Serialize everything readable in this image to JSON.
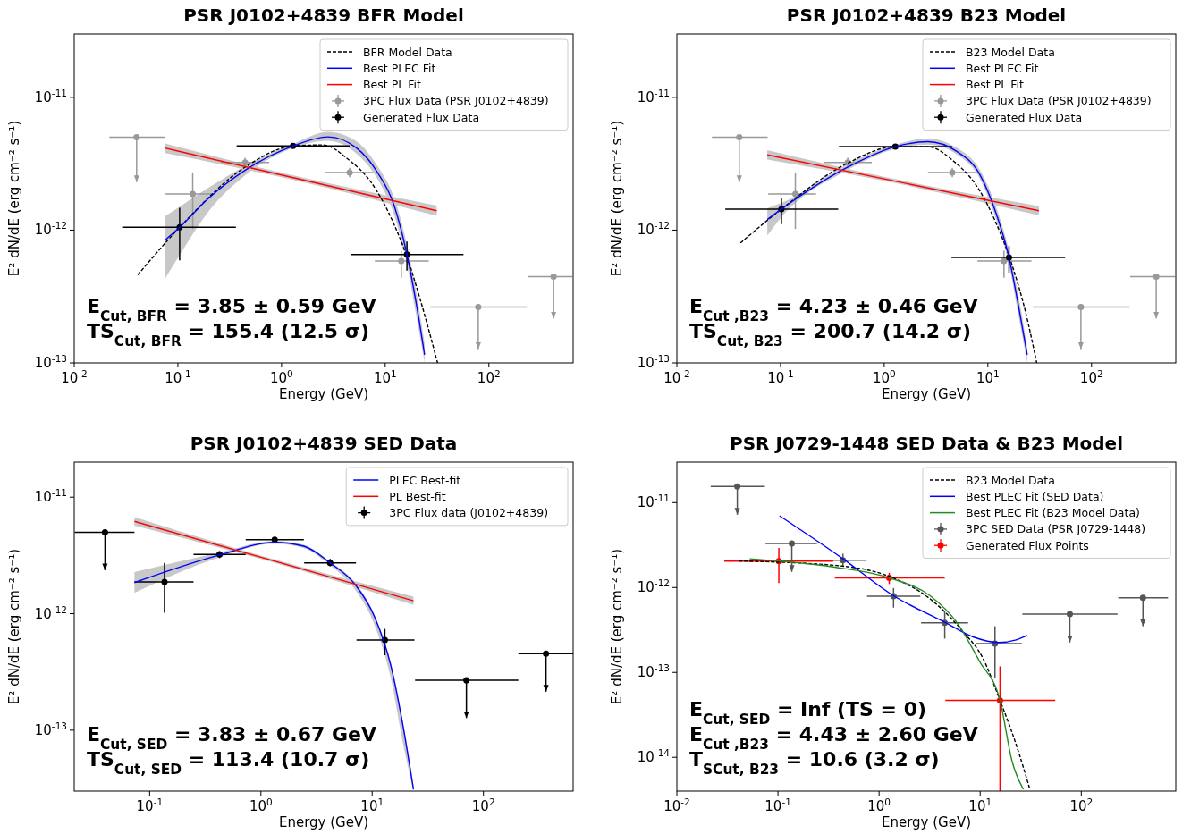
{
  "chart_data": [
    {
      "type": "line",
      "title": "PSR J0102+4839 BFR Model",
      "xlabel": "Energy (GeV)",
      "ylabel": "E² dN/dE (erg cm⁻² s⁻¹)",
      "log": "xy",
      "legend": "top right",
      "xlim": [
        0.01,
        650
      ],
      "ylim": [
        1e-13,
        3e-11
      ],
      "xticks": [
        {
          "value": 0.01,
          "label": "10$^{-2}$"
        },
        {
          "value": 0.1,
          "label": "10$^{-1}$"
        },
        {
          "value": 1,
          "label": "10$^{0}$"
        },
        {
          "value": 10,
          "label": "10$^{1}$"
        },
        {
          "value": 100,
          "label": "10$^{2}$"
        }
      ],
      "yticks": [
        {
          "value": 1e-13,
          "label": "10$^{-13}$"
        },
        {
          "value": 1e-12,
          "label": "10$^{-12}$"
        },
        {
          "value": 1e-11,
          "label": "10$^{-11}$"
        }
      ],
      "series": [
        {
          "name": "BFR Model Data",
          "line_style": "dashed",
          "color": "#000000",
          "x": [
            0.041,
            0.104,
            0.45,
            1.29,
            2.5,
            4.48,
            7.38,
            12.2,
            16.2,
            21.7,
            32
          ],
          "values": [
            4.6e-13,
            1.05e-12,
            3e-12,
            4.3e-12,
            4.38e-12,
            3.37e-12,
            2.27e-12,
            1.1e-12,
            6.3e-13,
            3.03e-13,
            1e-13
          ]
        },
        {
          "name": "Best PLEC Fit",
          "color": "#0000ff",
          "x": [
            0.075,
            0.104,
            0.2,
            0.45,
            1.29,
            2.8,
            5.2,
            8.5,
            12.2,
            16.2,
            20.1,
            24
          ],
          "values": [
            8.4e-13,
            1.05e-12,
            1.75e-12,
            2.84e-12,
            4.3e-12,
            5.04e-12,
            4.2e-12,
            2.69e-12,
            1.53e-12,
            6.55e-13,
            2.7e-13,
            1.15e-13
          ],
          "lower": [
            4.3e-13,
            6.5e-13,
            1.4e-12,
            2.6e-12,
            4.15e-12,
            4.7e-12,
            3.8e-12,
            2.4e-12,
            1.3e-12,
            5.5e-13,
            2.2e-13,
            1e-13
          ],
          "upper": [
            1.27e-12,
            1.5e-12,
            2.1e-12,
            3.05e-12,
            4.45e-12,
            5.5e-12,
            4.7e-12,
            3e-12,
            1.75e-12,
            7.8e-13,
            3.3e-13,
            1.4e-13
          ]
        },
        {
          "name": "Best PL Fit",
          "color": "#ff0000",
          "x": [
            0.075,
            1,
            31.4
          ],
          "values": [
            4.15e-12,
            2.6e-12,
            1.4e-12
          ],
          "lower": [
            3.8e-12,
            2.5e-12,
            1.28e-12
          ],
          "upper": [
            4.5e-12,
            2.7e-12,
            1.53e-12
          ]
        },
        {
          "name": "3PC Flux Data (PSR J0102+4839)",
          "type": "scatter",
          "color": "#999999",
          "x": [
            0.04,
            0.139,
            0.445,
            4.54,
            14.3,
            79,
            421
          ],
          "values": [
            5e-12,
            1.87e-12,
            3.23e-12,
            2.72e-12,
            5.86e-13,
            2.63e-13,
            4.47e-13
          ],
          "xerrors": [
            [
              0.0218,
              0.075
            ],
            [
              0.076,
              0.22
            ],
            [
              0.26,
              0.76
            ],
            [
              2.64,
              7.65
            ],
            [
              7.94,
              26.3
            ],
            [
              27.2,
              233
            ],
            [
              236,
              640
            ]
          ],
          "errors": [
            [
              2.3e-12,
              5e-12
            ],
            [
              1.02e-12,
              2.72e-12
            ],
            [
              3e-12,
              3.5e-12
            ],
            [
              2.5e-12,
              2.95e-12
            ],
            [
              4.37e-13,
              7e-13
            ],
            [
              1.27e-13,
              2.63e-13
            ],
            [
              2.16e-13,
              4.47e-13
            ]
          ]
        },
        {
          "name": "Generated Flux Data",
          "type": "scatter",
          "color": "#000000",
          "x": [
            0.104,
            1.29,
            16.2
          ],
          "values": [
            1.05e-12,
            4.3e-12,
            6.55e-13
          ],
          "xerrors": [
            [
              0.0296,
              0.363
            ],
            [
              0.369,
              4.54
            ],
            [
              4.64,
              56.9
            ]
          ],
          "errors": [
            [
              5.93e-13,
              1.47e-12
            ],
            null,
            [
              4.95e-13,
              8.2e-13
            ]
          ]
        }
      ],
      "annotations": [
        "E$_{Cut, BFR}$ = 3.85 ± 0.59 GeV",
        "TS$_{Cut, BFR}$ = 155.4 (12.5 σ)"
      ]
    },
    {
      "type": "line",
      "title": "PSR J0102+4839 B23 Model",
      "xlabel": "Energy (GeV)",
      "ylabel": "E² dN/dE (erg cm⁻² s⁻¹)",
      "log": "xy",
      "legend": "top right",
      "xlim": [
        0.01,
        650
      ],
      "ylim": [
        1e-13,
        3e-11
      ],
      "xticks": [
        {
          "value": 0.01,
          "label": "10$^{-2}$"
        },
        {
          "value": 0.1,
          "label": "10$^{-1}$"
        },
        {
          "value": 1,
          "label": "10$^{0}$"
        },
        {
          "value": 10,
          "label": "10$^{1}$"
        },
        {
          "value": 100,
          "label": "10$^{2}$"
        }
      ],
      "yticks": [
        {
          "value": 1e-13,
          "label": "10$^{-13}$"
        },
        {
          "value": 1e-12,
          "label": "10$^{-12}$"
        },
        {
          "value": 1e-11,
          "label": "10$^{-11}$"
        }
      ],
      "series": [
        {
          "name": "B23 Model Data",
          "line_style": "dashed",
          "color": "#000000",
          "x": [
            0.041,
            0.102,
            0.43,
            1.28,
            2.63,
            4.69,
            8.35,
            12.0,
            17.2,
            23.0,
            29.6
          ],
          "values": [
            8e-13,
            1.44e-12,
            3.15e-12,
            4.25e-12,
            4.25e-12,
            3.3e-12,
            1.98e-12,
            1.13e-12,
            5.4e-13,
            2.45e-13,
            1e-13
          ]
        },
        {
          "name": "Best PLEC Fit",
          "color": "#0000ff",
          "x": [
            0.0745,
            0.102,
            0.43,
            1.28,
            2.63,
            5.05,
            8.35,
            12.0,
            16.0,
            19.9,
            24
          ],
          "values": [
            1.2e-12,
            1.44e-12,
            2.94e-12,
            4.25e-12,
            4.63e-12,
            3.9e-12,
            2.63e-12,
            1.34e-12,
            6.22e-13,
            2.6e-13,
            1.15e-13
          ],
          "lower": [
            9.1e-13,
            1.25e-12,
            2.8e-12,
            4.1e-12,
            4.4e-12,
            3.7e-12,
            2.45e-12,
            1.2e-12,
            5.5e-13,
            2.2e-13,
            1e-13
          ],
          "upper": [
            1.46e-12,
            1.6e-12,
            3.1e-12,
            4.4e-12,
            4.9e-12,
            4.15e-12,
            2.85e-12,
            1.5e-12,
            7e-13,
            3.1e-13,
            1.3e-13
          ]
        },
        {
          "name": "Best PL Fit",
          "color": "#ff0000",
          "x": [
            0.0745,
            1,
            31.1
          ],
          "values": [
            3.69e-12,
            2.43e-12,
            1.4e-12
          ],
          "lower": [
            3.4e-12,
            2.35e-12,
            1.29e-12
          ],
          "upper": [
            4e-12,
            2.52e-12,
            1.52e-12
          ]
        },
        {
          "name": "3PC Flux Data (PSR J0102+4839)",
          "type": "scatter",
          "color": "#999999",
          "x": [
            0.04,
            0.139,
            0.445,
            4.54,
            14.3,
            79,
            421
          ],
          "values": [
            5e-12,
            1.87e-12,
            3.23e-12,
            2.72e-12,
            5.86e-13,
            2.63e-13,
            4.47e-13
          ],
          "xerrors": [
            [
              0.0218,
              0.075
            ],
            [
              0.076,
              0.22
            ],
            [
              0.26,
              0.76
            ],
            [
              2.64,
              7.65
            ],
            [
              7.94,
              26.3
            ],
            [
              27.2,
              233
            ],
            [
              236,
              640
            ]
          ],
          "errors": [
            [
              2.3e-12,
              5e-12
            ],
            [
              1.02e-12,
              2.72e-12
            ],
            [
              3e-12,
              3.5e-12
            ],
            [
              2.5e-12,
              2.95e-12
            ],
            [
              4.37e-13,
              7e-13
            ],
            [
              1.27e-13,
              2.63e-13
            ],
            [
              2.16e-13,
              4.47e-13
            ]
          ]
        },
        {
          "name": "Generated Flux Data",
          "type": "scatter",
          "color": "#000000",
          "x": [
            0.102,
            1.28,
            16.0
          ],
          "values": [
            1.44e-12,
            4.25e-12,
            6.22e-13
          ],
          "xerrors": [
            [
              0.0293,
              0.36
            ],
            [
              0.366,
              4.52
            ],
            [
              4.46,
              55.6
            ]
          ],
          "errors": [
            [
              1.11e-12,
              1.74e-12
            ],
            null,
            [
              4.78e-13,
              7.6e-13
            ]
          ]
        }
      ],
      "annotations": [
        "E$_{Cut ,B23}$ = 4.23 ± 0.46 GeV",
        "TS$_{Cut, B23}$ = 200.7 (14.2 σ)"
      ]
    },
    {
      "type": "line",
      "title": "PSR J0102+4839 SED Data",
      "xlabel": "Energy (GeV)",
      "ylabel": "E² dN/dE (erg cm⁻² s⁻¹)",
      "log": "xy",
      "legend": "top right",
      "xlim": [
        0.021,
        640
      ],
      "ylim": [
        3e-14,
        2e-11
      ],
      "xticks": [
        {
          "value": 0.1,
          "label": "10$^{-1}$"
        },
        {
          "value": 1,
          "label": "10$^{0}$"
        },
        {
          "value": 10,
          "label": "10$^{1}$"
        },
        {
          "value": 100,
          "label": "10$^{2}$"
        }
      ],
      "yticks": [
        {
          "value": 1e-13,
          "label": "10$^{-13}$"
        },
        {
          "value": 1e-12,
          "label": "10$^{-12}$"
        },
        {
          "value": 1e-11,
          "label": "10$^{-11}$"
        }
      ],
      "series": [
        {
          "name": "PLEC Best-fit",
          "color": "#0000ff",
          "x": [
            0.073,
            0.425,
            1.33,
            2.43,
            4.19,
            7.06,
            10.5,
            14.7,
            19.2,
            23.5
          ],
          "values": [
            1.85e-12,
            3.19e-12,
            4.1e-12,
            3.8e-12,
            2.73e-12,
            1.77e-12,
            9.4e-13,
            3.6e-13,
            1.01e-13,
            3.1e-14
          ],
          "lower": [
            1.51e-12,
            3.05e-12,
            3.98e-12,
            3.65e-12,
            2.6e-12,
            1.6e-12,
            8e-13,
            2.8e-13,
            7.2e-14,
            3e-14
          ],
          "upper": [
            2.28e-12,
            3.35e-12,
            4.2e-12,
            3.9e-12,
            2.8e-12,
            1.83e-12,
            9.8e-13,
            3.8e-13,
            1.08e-13,
            3.4e-14
          ]
        },
        {
          "name": "PL Best-fit",
          "color": "#ff0000",
          "x": [
            0.073,
            1,
            23.5
          ],
          "values": [
            6.2e-12,
            3.05e-12,
            1.29e-12
          ],
          "lower": [
            5.7e-12,
            2.95e-12,
            1.19e-12
          ],
          "upper": [
            6.75e-12,
            3.15e-12,
            1.4e-12
          ]
        },
        {
          "name": "3PC Flux data (J0102+4839)",
          "type": "scatter",
          "color": "#000000",
          "x": [
            0.0397,
            0.136,
            0.425,
            1.33,
            4.19,
            13.0,
            70.3,
            365
          ],
          "values": [
            5e-12,
            1.87e-12,
            3.22e-12,
            4.31e-12,
            2.73e-12,
            5.94e-13,
            2.68e-13,
            4.54e-13
          ],
          "xerrors": [
            [
              0.0212,
              0.073
            ],
            [
              0.073,
              0.248
            ],
            [
              0.248,
              0.73
            ],
            [
              0.73,
              2.43
            ],
            [
              2.45,
              7.16
            ],
            [
              7.23,
              24
            ],
            [
              24.3,
              206
            ],
            [
              206,
              640
            ]
          ],
          "errors": [
            [
              2.36e-12,
              5e-12
            ],
            [
              1.02e-12,
              2.73e-12
            ],
            [
              3e-12,
              3.45e-12
            ],
            null,
            [
              2.55e-12,
              2.95e-12
            ],
            [
              4.4e-13,
              7.4e-13
            ],
            [
              1.27e-13,
              2.68e-13
            ],
            [
              2.14e-13,
              4.54e-13
            ]
          ]
        }
      ],
      "annotations": [
        "E$_{Cut, SED}$ = 3.83 ± 0.67 GeV",
        "TS$_{Cut, SED}$ = 113.4 (10.7 σ)"
      ]
    },
    {
      "type": "line",
      "title": "PSR J0729-1448 SED Data & B23 Model",
      "xlabel": "Energy (GeV)",
      "ylabel": "E² dN/dE (erg cm⁻² s⁻¹)",
      "log": "xy",
      "legend": "top right",
      "xlim": [
        0.01,
        860
      ],
      "ylim": [
        4e-15,
        3e-11
      ],
      "xticks": [
        {
          "value": 0.01,
          "label": "10$^{-2}$"
        },
        {
          "value": 0.1,
          "label": "10$^{-1}$"
        },
        {
          "value": 1,
          "label": "10$^{0}$"
        },
        {
          "value": 10,
          "label": "10$^{1}$"
        },
        {
          "value": 100,
          "label": "10$^{2}$"
        }
      ],
      "yticks": [
        {
          "value": 1e-14,
          "label": "10$^{-14}$"
        },
        {
          "value": 1e-13,
          "label": "10$^{-13}$"
        },
        {
          "value": 1e-12,
          "label": "10$^{-12}$"
        },
        {
          "value": 1e-11,
          "label": "10$^{-11}$"
        }
      ],
      "series": [
        {
          "name": "B23 Model Data",
          "line_style": "dashed",
          "color": "#000000",
          "x": [
            0.041,
            0.352,
            1.26,
            3.24,
            6.8,
            10.6,
            15.7,
            22.4,
            31
          ],
          "values": [
            2.05e-12,
            1.83e-12,
            1.35e-12,
            7.25e-13,
            3e-13,
            1.48e-13,
            4.68e-14,
            1.48e-14,
            4.2e-15
          ]
        },
        {
          "name": "Best PLEC Fit (SED Data)",
          "color": "#0000ff",
          "x": [
            0.1035,
            0.439,
            1.39,
            4.46,
            8.5,
            15.3,
            22.2,
            29.2
          ],
          "values": [
            7e-12,
            2.18e-12,
            8e-13,
            3.9e-13,
            2.62e-13,
            2.25e-13,
            2.4e-13,
            2.73e-13
          ]
        },
        {
          "name": "Best PLEC Fit (B23 Model Data)",
          "color": "#228b22",
          "x": [
            0.0525,
            0.102,
            0.352,
            1.26,
            3.24,
            5.86,
            9.84,
            15.7,
            20.7,
            26.7
          ],
          "values": [
            2.18e-12,
            2.05e-12,
            1.75e-12,
            1.3e-12,
            7.9e-13,
            3.9e-13,
            1.35e-13,
            4.68e-14,
            8.9e-15,
            4.2e-15
          ]
        },
        {
          "name": "3PC SED Data (PSR J0729-1448)",
          "type": "scatter",
          "color": "#555555",
          "x": [
            0.0396,
            0.137,
            0.439,
            1.39,
            4.46,
            14.0,
            77,
            407
          ],
          "values": [
            1.55e-11,
            3.31e-12,
            2.09e-12,
            7.9e-13,
            3.83e-13,
            2.19e-13,
            4.86e-13,
            7.57e-13
          ],
          "xerrors": [
            [
              0.0216,
              0.0743
            ],
            [
              0.0753,
              0.243
            ],
            [
              0.252,
              0.753
            ],
            [
              0.76,
              2.56
            ],
            [
              2.6,
              7.59
            ],
            [
              9.14,
              25.8
            ],
            [
              26.1,
              228
            ],
            [
              232,
              721
            ]
          ],
          "errors": [
            [
              7.2e-12,
              1.55e-11
            ],
            [
              1.53e-12,
              3.31e-12
            ],
            [
              1.78e-12,
              2.5e-12
            ],
            [
              5.8e-13,
              9.86e-13
            ],
            [
              2.5e-13,
              5.17e-13
            ],
            [
              8.5e-14,
              3.5e-13
            ],
            [
              2.25e-13,
              4.86e-13
            ],
            [
              3.5e-13,
              7.57e-13
            ]
          ]
        },
        {
          "name": "Generated Flux Points",
          "type": "scatter",
          "color": "#ff0000",
          "x": [
            0.102,
            1.26,
            15.7
          ],
          "values": [
            2.05e-12,
            1.3e-12,
            4.68e-14
          ],
          "xerrors": [
            [
              0.0294,
              0.352
            ],
            [
              0.365,
              4.46
            ],
            [
              4.52,
              55.2
            ]
          ],
          "errors": [
            [
              1.13e-12,
              2.92e-12
            ],
            [
              1.1e-12,
              1.49e-12
            ],
            [
              4e-15,
              1.18e-13
            ]
          ]
        }
      ],
      "annotations": [
        "E$_{Cut, SED}$ = Inf (TS = 0)",
        "E$_{Cut ,B23}$ = 4.43 ± 2.60 GeV",
        "T$_{SCut, B23}$ = 10.6 (3.2 σ)"
      ]
    }
  ]
}
